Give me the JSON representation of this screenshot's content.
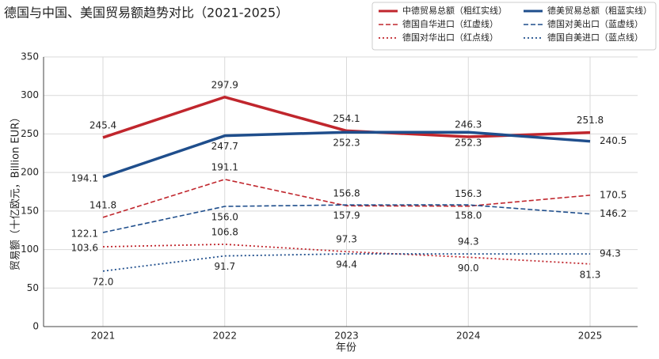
{
  "chart_data": {
    "type": "line",
    "title": "德国与中国、美国贸易额趋势对比（2021-2025）",
    "x_label": "年份",
    "y_label": "贸易额（十亿欧元，Billion EUR）",
    "categories": [
      "2021",
      "2022",
      "2023",
      "2024",
      "2025"
    ],
    "ylim": [
      0,
      350
    ],
    "yticks": [
      0,
      50,
      100,
      150,
      200,
      250,
      300,
      350
    ],
    "grid": true,
    "legend": "upper right",
    "series": [
      {
        "name": "中德贸易总额（粗红实线）",
        "color": "#c0262d",
        "linestyle": "solid",
        "linewidth": 3.5,
        "values": [
          245.4,
          297.9,
          254.1,
          246.3,
          251.8
        ],
        "value_labels": [
          "245.4",
          "297.9",
          "254.1",
          "246.3",
          "251.8"
        ]
      },
      {
        "name": "德美贸易总额（粗蓝实线）",
        "color": "#1f4e8c",
        "linestyle": "solid",
        "linewidth": 3.5,
        "values": [
          194.1,
          247.7,
          252.3,
          252.3,
          240.5
        ],
        "value_labels": [
          "194.1",
          "247.7",
          "252.3",
          "252.3",
          "240.5"
        ]
      },
      {
        "name": "德国自华进口（红虚线）",
        "color": "#c0262d",
        "linestyle": "dashed",
        "linewidth": 1.6,
        "values": [
          141.8,
          191.1,
          156.8,
          156.3,
          170.5
        ],
        "value_labels": [
          "141.8",
          "191.1",
          "156.8",
          "156.3",
          "170.5"
        ]
      },
      {
        "name": "德国对美出口（蓝虚线）",
        "color": "#1f4e8c",
        "linestyle": "dashed",
        "linewidth": 1.6,
        "values": [
          122.1,
          156.0,
          157.9,
          158.0,
          146.2
        ],
        "value_labels": [
          "122.1",
          "156.0",
          "157.9",
          "158.0",
          "146.2"
        ]
      },
      {
        "name": "德国对华出口（红点线）",
        "color": "#c0262d",
        "linestyle": "dotted",
        "linewidth": 1.8,
        "values": [
          103.6,
          106.8,
          97.3,
          90.0,
          81.3
        ],
        "value_labels": [
          "103.6",
          "106.8",
          "97.3",
          "90.0",
          "81.3"
        ]
      },
      {
        "name": "德国自美进口（蓝点线）",
        "color": "#1f4e8c",
        "linestyle": "dotted",
        "linewidth": 1.8,
        "values": [
          72.0,
          91.7,
          94.4,
          94.3,
          94.3
        ],
        "value_labels": [
          "72.0",
          "91.7",
          "94.4",
          "94.3",
          "94.3"
        ]
      }
    ]
  }
}
